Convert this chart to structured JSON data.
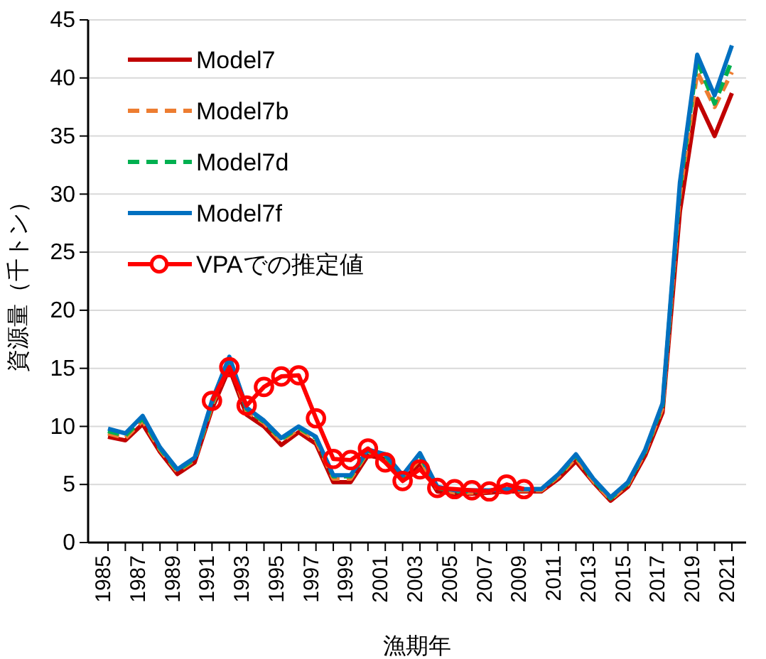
{
  "chart_data": {
    "type": "line",
    "xlabel": "漁期年",
    "ylabel": "資源量（千トン）",
    "categories": [
      "1985",
      null,
      "1987",
      null,
      "1989",
      null,
      "1991",
      null,
      "1993",
      null,
      "1995",
      null,
      "1997",
      null,
      "1999",
      null,
      "2001",
      null,
      "2003",
      null,
      "2005",
      null,
      "2007",
      null,
      "2009",
      null,
      "2011",
      null,
      "2013",
      null,
      "2015",
      null,
      "2017",
      null,
      "2019",
      null,
      "2021"
    ],
    "ylim": [
      0,
      45
    ],
    "yticks": [
      0,
      5,
      10,
      15,
      20,
      25,
      30,
      35,
      40,
      45
    ],
    "grid": "y",
    "legend": "top left",
    "series": [
      {
        "name": "Model7",
        "color": "#c00000",
        "line_style": "solid",
        "marker": "none",
        "values": [
          9.1,
          8.8,
          10.2,
          7.8,
          5.9,
          6.9,
          11.5,
          15.0,
          11.0,
          10.0,
          8.4,
          9.5,
          8.5,
          5.2,
          5.2,
          7.5,
          7.2,
          5.4,
          6.8,
          4.4,
          4.2,
          4.2,
          4.3,
          4.4,
          4.4,
          4.4,
          5.5,
          7.0,
          5.2,
          3.6,
          4.8,
          7.5,
          11.2,
          28.5,
          38.2,
          35.0,
          38.7
        ]
      },
      {
        "name": "Model7b",
        "color": "#ed7d31",
        "line_style": "dashed",
        "marker": "none",
        "values": [
          9.4,
          9.0,
          10.5,
          8.0,
          6.1,
          7.1,
          11.8,
          15.5,
          11.3,
          10.3,
          8.7,
          9.8,
          8.8,
          5.5,
          5.5,
          7.8,
          7.4,
          5.6,
          7.2,
          4.6,
          4.3,
          4.3,
          4.4,
          4.5,
          4.5,
          4.5,
          5.7,
          7.3,
          5.3,
          3.7,
          5.0,
          7.8,
          11.6,
          30.0,
          40.5,
          37.5,
          40.5
        ]
      },
      {
        "name": "Model7d",
        "color": "#00b050",
        "line_style": "dashed",
        "marker": "none",
        "values": [
          9.6,
          9.2,
          10.7,
          8.1,
          6.2,
          7.2,
          12.0,
          15.8,
          11.5,
          10.4,
          8.9,
          9.9,
          9.0,
          5.7,
          5.7,
          7.9,
          7.5,
          5.7,
          7.5,
          4.7,
          4.4,
          4.4,
          4.5,
          4.6,
          4.6,
          4.6,
          5.8,
          7.5,
          5.4,
          3.8,
          5.1,
          7.9,
          11.8,
          30.5,
          41.5,
          37.8,
          41.5
        ]
      },
      {
        "name": "Model7f",
        "color": "#0070c0",
        "line_style": "solid",
        "marker": "none",
        "values": [
          9.8,
          9.4,
          10.9,
          8.2,
          6.3,
          7.3,
          12.2,
          16.0,
          11.6,
          10.5,
          9.0,
          10.0,
          9.1,
          5.8,
          5.8,
          8.0,
          7.6,
          5.8,
          7.7,
          4.8,
          4.5,
          4.5,
          4.5,
          4.6,
          4.6,
          4.6,
          5.9,
          7.6,
          5.5,
          3.9,
          5.2,
          8.0,
          12.0,
          31.0,
          42.0,
          38.5,
          42.8
        ]
      },
      {
        "name": "VPAでの推定値",
        "color": "#ff0000",
        "line_style": "solid",
        "marker": "circle",
        "values": [
          null,
          null,
          null,
          null,
          null,
          null,
          12.2,
          15.1,
          11.8,
          13.4,
          14.3,
          14.4,
          10.7,
          7.2,
          7.1,
          8.1,
          6.9,
          5.3,
          6.3,
          4.7,
          4.6,
          4.5,
          4.4,
          5.0,
          4.6,
          null,
          null,
          null,
          null,
          null,
          null,
          null,
          null,
          null,
          null,
          null,
          null
        ]
      }
    ]
  }
}
